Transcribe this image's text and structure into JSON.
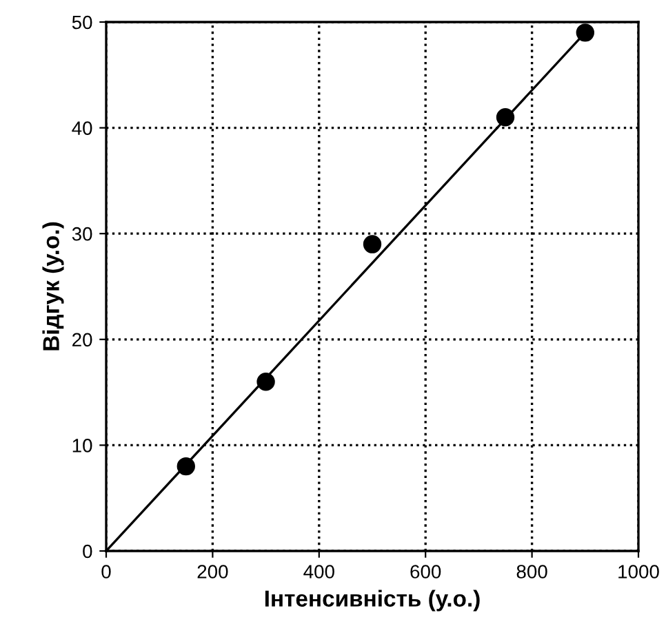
{
  "chart_data": {
    "type": "scatter",
    "xlabel": "Інтенсивність (у.о.)",
    "ylabel": "Відгук (у.о.)",
    "marker": "circle",
    "series": [
      {
        "color": "#000000",
        "x": [
          150,
          300,
          500,
          750,
          900
        ],
        "values": [
          8,
          16,
          29,
          41,
          49
        ]
      },
      {
        "type": "line",
        "color": "#000000",
        "marker": "none",
        "x": [
          0,
          900
        ],
        "values": [
          0,
          49
        ]
      }
    ],
    "xlim": [
      0,
      1000
    ],
    "ylim": [
      0,
      50
    ],
    "xticks": [
      0,
      200,
      400,
      600,
      800,
      1000
    ],
    "yticks": [
      0,
      10,
      20,
      30,
      40,
      50
    ],
    "grid": true
  }
}
